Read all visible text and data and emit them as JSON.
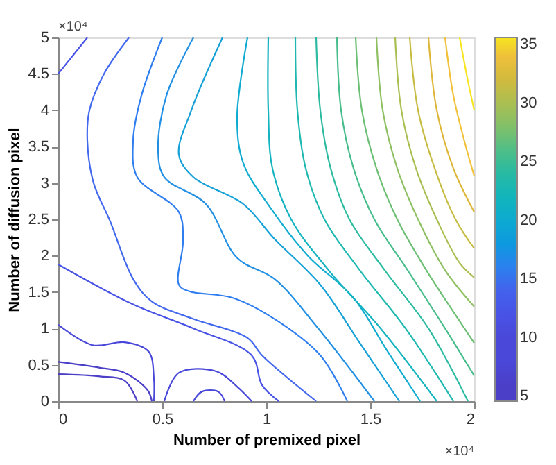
{
  "chart_data": {
    "type": "line",
    "xlabel": "Number of premixed pixel",
    "ylabel": "Number of diffusion pixel",
    "marker": "none",
    "line_style": "solid",
    "grid": false,
    "xlim": [
      0,
      2
    ],
    "ylim": [
      0,
      5
    ],
    "xticks": [
      0,
      0.5,
      1,
      1.5,
      2
    ],
    "yticks": [
      0,
      0.5,
      1,
      1.5,
      2,
      2.5,
      3,
      3.5,
      4,
      4.5,
      5
    ],
    "clim": [
      4.6,
      35.6
    ],
    "cticks": [
      5,
      10,
      15,
      20,
      25,
      30,
      35
    ],
    "annotations": [
      "×10⁴",
      "×10⁴"
    ],
    "series": [
      {
        "color": "#4b3fc8",
        "x": [
          0,
          0.2,
          0.32,
          0.38
        ],
        "values": [
          0.37,
          0.34,
          0.28,
          0
        ]
      },
      {
        "color": "#4b3fc8",
        "x": [
          0,
          0.2,
          0.32,
          0.43,
          0.45
        ],
        "values": [
          0.54,
          0.46,
          0.39,
          0.15,
          0
        ]
      },
      {
        "color": "#4a48d8",
        "x": [
          0.65,
          0.69,
          0.77,
          0.8
        ],
        "values": [
          0,
          0.13,
          0.13,
          0
        ]
      },
      {
        "color": "#4a48d8",
        "x": [
          0,
          0.165,
          0.32,
          0.435,
          0.46,
          0.46
        ],
        "values": [
          1.05,
          0.77,
          0.81,
          0.68,
          0.31,
          0
        ]
      },
      {
        "color": "#4a48d8",
        "x": [
          0.51,
          0.58,
          0.76,
          0.86,
          0.93
        ],
        "values": [
          0,
          0.39,
          0.41,
          0.2,
          0
        ]
      },
      {
        "color": "#4853e6",
        "x": [
          0,
          0.14
        ],
        "values": [
          4.5,
          5
        ]
      },
      {
        "color": "#4853e6",
        "x": [
          0,
          0.36,
          0.65,
          0.93,
          0.98,
          1.06
        ],
        "values": [
          1.88,
          1.33,
          1.0,
          0.63,
          0.22,
          0
        ]
      },
      {
        "color": "#4268ee",
        "x": [
          0.34,
          0.22,
          0.15,
          0.14,
          0.17,
          0.25,
          0.36,
          0.45,
          0.65,
          0.91,
          0.98,
          1.24
        ],
        "values": [
          5,
          4.5,
          4.0,
          3.58,
          3.0,
          2.47,
          1.68,
          1.37,
          1.13,
          0.87,
          0.63,
          0
        ]
      },
      {
        "color": "#2f7ef0",
        "x": [
          0.5,
          0.4,
          0.36,
          0.38,
          0.58,
          0.6,
          0.58,
          0.63,
          0.84,
          1.04,
          1.26,
          1.39
        ],
        "values": [
          5,
          4.2,
          3.58,
          3.08,
          2.6,
          2.2,
          1.6,
          1.51,
          1.42,
          1.13,
          0.63,
          0
        ]
      },
      {
        "color": "#2190e4",
        "x": [
          0.65,
          0.52,
          0.48,
          0.51,
          0.71,
          0.86,
          1.04,
          1.25,
          1.52
        ],
        "values": [
          5,
          4.2,
          3.45,
          3.08,
          2.71,
          1.97,
          1.68,
          1.0,
          0
        ]
      },
      {
        "color": "#15a0d8",
        "x": [
          0.79,
          0.64,
          0.58,
          0.65,
          0.89,
          1.04,
          1.26,
          1.45,
          1.64
        ],
        "values": [
          5,
          4.0,
          3.39,
          3.08,
          2.71,
          2.23,
          1.6,
          0.8,
          0
        ]
      },
      {
        "color": "#0fabd0",
        "x": [
          0.91,
          0.86,
          0.89,
          1.02,
          1.2,
          1.42,
          1.58,
          1.74
        ],
        "values": [
          5,
          3.89,
          3.27,
          2.66,
          2.0,
          1.42,
          0.7,
          0
        ]
      },
      {
        "color": "#14b3c0",
        "x": [
          1.01,
          1.01,
          1.03,
          1.12,
          1.3,
          1.55,
          1.82
        ],
        "values": [
          5,
          4.0,
          3.2,
          2.5,
          1.8,
          1.0,
          0
        ]
      },
      {
        "color": "#1eb8b0",
        "x": [
          1.14,
          1.15,
          1.19,
          1.28,
          1.45,
          1.67,
          1.9
        ],
        "values": [
          5,
          4.0,
          3.2,
          2.5,
          1.8,
          1.0,
          0
        ]
      },
      {
        "color": "#2cbba0",
        "x": [
          1.24,
          1.26,
          1.31,
          1.4,
          1.57,
          1.78,
          1.97
        ],
        "values": [
          5,
          4.0,
          3.2,
          2.5,
          1.8,
          1.0,
          0
        ]
      },
      {
        "color": "#48bd8c",
        "x": [
          1.34,
          1.36,
          1.42,
          1.52,
          1.68,
          1.86,
          2
        ],
        "values": [
          5,
          4.0,
          3.2,
          2.5,
          1.8,
          1.0,
          0.35
        ]
      },
      {
        "color": "#6cbf74",
        "x": [
          1.43,
          1.46,
          1.53,
          1.63,
          1.77,
          1.93,
          2
        ],
        "values": [
          5,
          4.0,
          3.2,
          2.5,
          1.8,
          1.1,
          0.8
        ]
      },
      {
        "color": "#8ec062",
        "x": [
          1.53,
          1.56,
          1.63,
          1.73,
          1.86,
          2
        ],
        "values": [
          5,
          4.0,
          3.2,
          2.5,
          1.8,
          1.3
        ]
      },
      {
        "color": "#aabf52",
        "x": [
          1.62,
          1.65,
          1.72,
          1.82,
          1.93,
          2
        ],
        "values": [
          5,
          4.0,
          3.2,
          2.5,
          1.9,
          1.7
        ]
      },
      {
        "color": "#c7bc42",
        "x": [
          1.69,
          1.73,
          1.81,
          1.91,
          2
        ],
        "values": [
          5,
          4.0,
          3.2,
          2.5,
          2.1
        ]
      },
      {
        "color": "#deb73a",
        "x": [
          1.78,
          1.82,
          1.9,
          2
        ],
        "values": [
          5,
          4.0,
          3.2,
          2.6
        ]
      },
      {
        "color": "#f2c13a",
        "x": [
          1.86,
          1.9,
          1.96,
          2
        ],
        "values": [
          5,
          4.2,
          3.5,
          3.1
        ]
      },
      {
        "color": "#f6e51f",
        "x": [
          1.93,
          1.97,
          2
        ],
        "values": [
          5,
          4.4,
          4.0
        ]
      }
    ]
  }
}
